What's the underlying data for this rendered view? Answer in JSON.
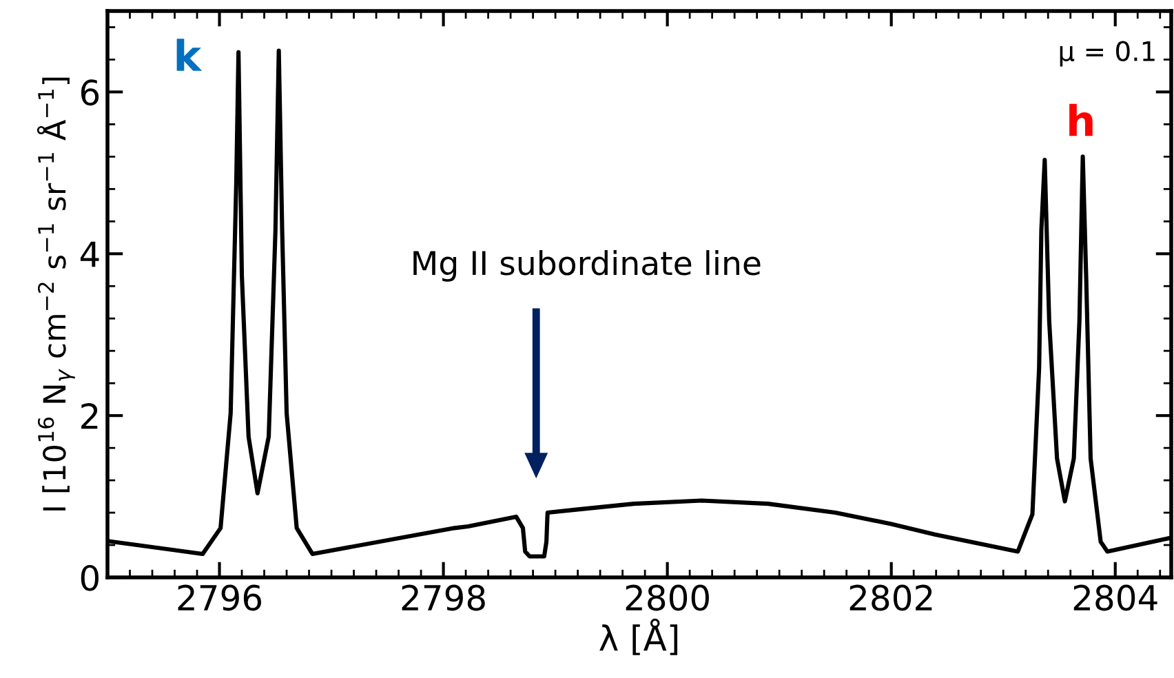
{
  "chart_data": {
    "type": "line",
    "xlabel": "λ [Å]",
    "ylabel": "I [10$^{16}$ N$_{γ}$ cm$^{−2}$ s$^{−1}$ sr$^{−1}$ Å$^{−1}$]",
    "xlim": [
      2795,
      2804.5
    ],
    "ylim": [
      0,
      7
    ],
    "xticks": [
      2796,
      2798,
      2800,
      2802,
      2804
    ],
    "yticks": [
      0,
      2,
      4,
      6
    ],
    "grid": false,
    "legend": false,
    "marker": "none",
    "line_style": "solid",
    "annotations": [
      "k",
      "h",
      "μ = 0.1",
      "Mg II subordinate line"
    ],
    "series": [
      {
        "color": "#000000",
        "x": [
          2795.0,
          2795.85,
          2796.01,
          2796.1,
          2796.15,
          2796.17,
          2796.2,
          2796.26,
          2796.34,
          2796.44,
          2796.5,
          2796.53,
          2796.56,
          2796.6,
          2796.69,
          2796.83,
          2798.1,
          2798.22,
          2798.65,
          2798.71,
          2798.73,
          2798.77,
          2798.9,
          2798.92,
          2798.93,
          2799.2,
          2799.7,
          2800.31,
          2800.9,
          2801.5,
          2802.0,
          2802.39,
          2803.13,
          2803.26,
          2803.32,
          2803.34,
          2803.37,
          2803.41,
          2803.48,
          2803.55,
          2803.63,
          2803.68,
          2803.71,
          2803.74,
          2803.78,
          2803.87,
          2803.93,
          2804.5
        ],
        "values": [
          0.45,
          0.29,
          0.61,
          2.03,
          4.87,
          6.49,
          3.73,
          1.74,
          1.04,
          1.74,
          4.29,
          6.51,
          4.29,
          2.03,
          0.61,
          0.29,
          0.61,
          0.63,
          0.75,
          0.61,
          0.32,
          0.26,
          0.26,
          0.44,
          0.8,
          0.84,
          0.91,
          0.95,
          0.91,
          0.8,
          0.66,
          0.53,
          0.32,
          0.78,
          2.59,
          4.29,
          5.16,
          3.17,
          1.47,
          0.94,
          1.47,
          3.17,
          5.2,
          3.73,
          1.47,
          0.44,
          0.32,
          0.49
        ]
      }
    ]
  }
}
